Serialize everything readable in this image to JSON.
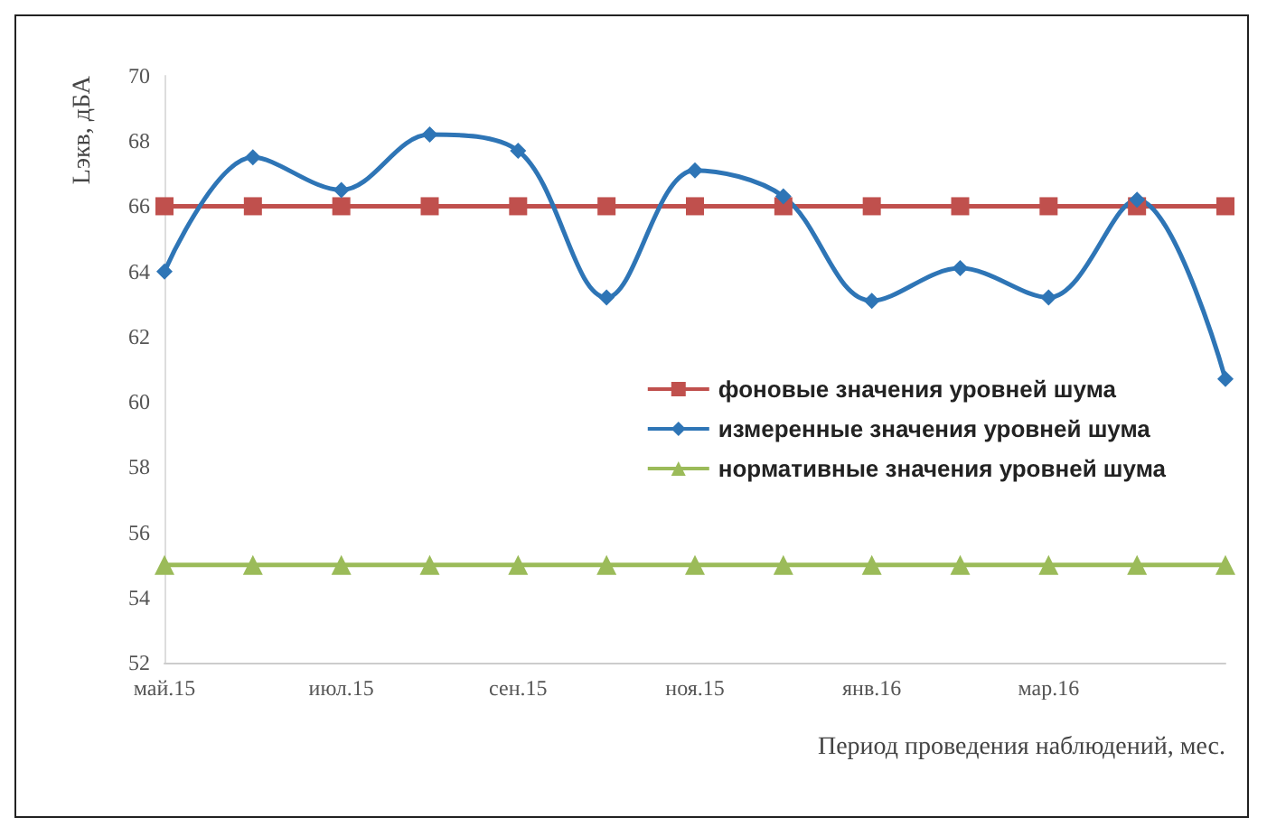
{
  "chart_data": {
    "type": "line",
    "xlabel": "Период проведения наблюдений, мес.",
    "ylabel": "Lэкв, дБА",
    "categories": [
      "май.15",
      null,
      "июл.15",
      null,
      "сен.15",
      null,
      "ноя.15",
      null,
      "янв.16",
      null,
      "мар.16",
      null,
      null
    ],
    "series": [
      {
        "name": "фоновые значения уровней шума",
        "color": "#c0504d",
        "marker": "square",
        "values": [
          66,
          66,
          66,
          66,
          66,
          66,
          66,
          66,
          66,
          66,
          66,
          66,
          66
        ]
      },
      {
        "name": "измеренные значения уровней шума",
        "color": "#2e75b6",
        "marker": "diamond",
        "values": [
          64.0,
          67.5,
          66.5,
          68.2,
          67.7,
          63.2,
          67.1,
          66.3,
          63.1,
          64.1,
          63.2,
          66.2,
          60.7
        ]
      },
      {
        "name": "нормативные значения уровней шума",
        "color": "#9bbb59",
        "marker": "triangle",
        "values": [
          55,
          55,
          55,
          55,
          55,
          55,
          55,
          55,
          55,
          55,
          55,
          55,
          55
        ]
      }
    ],
    "ylim": [
      52,
      70
    ],
    "yticks": [
      52,
      54,
      56,
      58,
      60,
      62,
      64,
      66,
      68,
      70
    ],
    "grid": false,
    "legend": "right"
  }
}
